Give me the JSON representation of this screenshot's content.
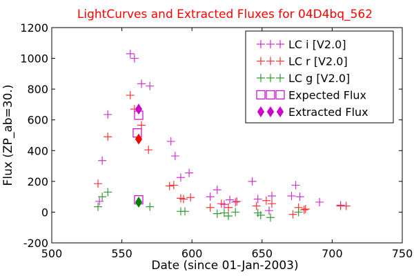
{
  "chart_data": {
    "type": "scatter",
    "title": "LightCurves and Extracted Fluxes for 04D4bq_562",
    "title_color": "#ff0000",
    "xlabel": "Date (since 01-Jan-2003)",
    "ylabel": "Flux (ZP_ab=30.)",
    "xlim": [
      500,
      750
    ],
    "ylim": [
      -200,
      1200
    ],
    "xticks": [
      500,
      550,
      600,
      650,
      700,
      750
    ],
    "yticks": [
      -200,
      0,
      200,
      400,
      600,
      800,
      1000,
      1200
    ],
    "grid": false,
    "legend_position": "top-right",
    "series": [
      {
        "name": "LC i [V2.0]",
        "marker": "plus",
        "color": "#cc33cc",
        "points": [
          [
            534,
            70
          ],
          [
            536,
            335
          ],
          [
            540,
            635
          ],
          [
            556,
            1030
          ],
          [
            559,
            1000
          ],
          [
            564,
            835
          ],
          [
            570,
            820
          ],
          [
            585,
            460
          ],
          [
            588,
            365
          ],
          [
            592,
            225
          ],
          [
            598,
            255
          ],
          [
            613,
            100
          ],
          [
            618,
            145
          ],
          [
            623,
            50
          ],
          [
            627,
            80
          ],
          [
            631,
            65
          ],
          [
            643,
            200
          ],
          [
            647,
            85
          ],
          [
            655,
            10
          ],
          [
            657,
            105
          ],
          [
            671,
            105
          ],
          [
            674,
            175
          ],
          [
            677,
            100
          ],
          [
            691,
            65
          ],
          [
            706,
            45
          ]
        ]
      },
      {
        "name": "LC r [V2.0]",
        "marker": "plus",
        "color": "#ff3333",
        "points": [
          [
            533,
            185
          ],
          [
            540,
            490
          ],
          [
            556,
            760
          ],
          [
            559,
            670
          ],
          [
            564,
            565
          ],
          [
            569,
            405
          ],
          [
            584,
            170
          ],
          [
            587,
            175
          ],
          [
            592,
            90
          ],
          [
            594,
            85
          ],
          [
            599,
            95
          ],
          [
            613,
            30
          ],
          [
            621,
            55
          ],
          [
            626,
            30
          ],
          [
            632,
            70
          ],
          [
            646,
            40
          ],
          [
            653,
            75
          ],
          [
            657,
            55
          ],
          [
            672,
            -15
          ],
          [
            676,
            30
          ],
          [
            680,
            15
          ],
          [
            681,
            20
          ],
          [
            706,
            40
          ],
          [
            710,
            40
          ]
        ]
      },
      {
        "name": "LC g [V2.0]",
        "marker": "plus",
        "color": "#339933",
        "points": [
          [
            533,
            35
          ],
          [
            536,
            100
          ],
          [
            540,
            130
          ],
          [
            570,
            35
          ],
          [
            592,
            5
          ],
          [
            595,
            5
          ],
          [
            618,
            -10
          ],
          [
            623,
            -5
          ],
          [
            626,
            -25
          ],
          [
            631,
            0
          ],
          [
            647,
            -5
          ],
          [
            649,
            -20
          ],
          [
            656,
            -35
          ],
          [
            676,
            0
          ]
        ]
      },
      {
        "name": "Expected Flux",
        "marker": "square-open",
        "color": "#cc00cc",
        "points": [
          [
            562,
            630
          ],
          [
            561,
            515
          ],
          [
            562,
            80
          ]
        ]
      },
      {
        "name": "Extracted Flux",
        "marker": "diamond",
        "color": "#cc00cc",
        "points": [
          [
            562,
            670
          ]
        ]
      },
      {
        "name": "",
        "marker": "diamond",
        "color": "#ff0000",
        "points": [
          [
            562,
            475
          ]
        ]
      },
      {
        "name": "",
        "marker": "diamond",
        "color": "#008000",
        "points": [
          [
            562,
            65
          ]
        ]
      }
    ],
    "legend": [
      {
        "label": "LC i [V2.0]",
        "marker": "plus",
        "color": "#cc33cc"
      },
      {
        "label": "LC r [V2.0]",
        "marker": "plus",
        "color": "#ff3333"
      },
      {
        "label": "LC g [V2.0]",
        "marker": "plus",
        "color": "#339933"
      },
      {
        "label": "Expected Flux",
        "marker": "square-open",
        "color": "#cc00cc"
      },
      {
        "label": "Extracted Flux",
        "marker": "diamond",
        "color": "#cc00cc"
      }
    ]
  }
}
